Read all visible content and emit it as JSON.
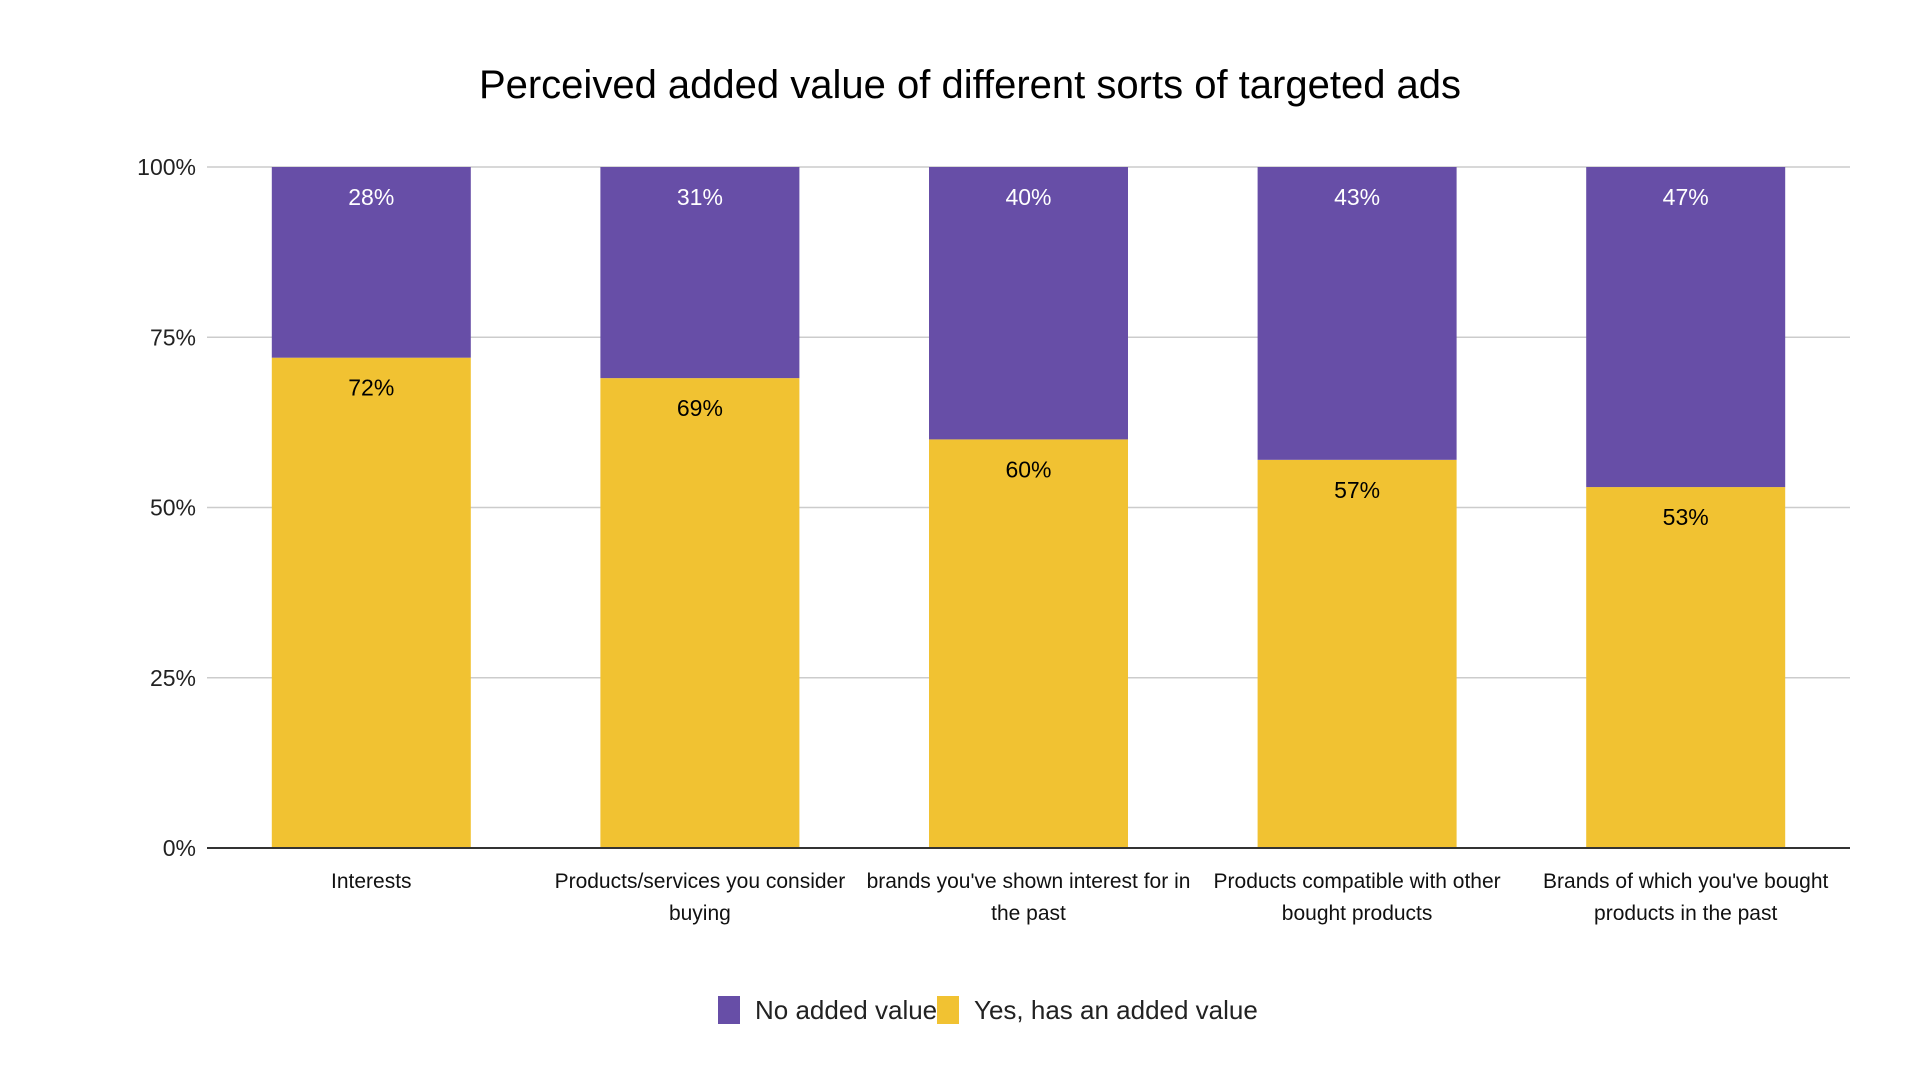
{
  "chart_data": {
    "type": "bar",
    "stacked": true,
    "title": "Perceived added value of different sorts of targeted ads",
    "categories": [
      [
        "Interests"
      ],
      [
        "Products/services you consider",
        "buying"
      ],
      [
        "brands you've shown interest for in",
        "the past"
      ],
      [
        "Products compatible with other",
        "bought products"
      ],
      [
        "Brands of which you've bought",
        "products in the past"
      ]
    ],
    "series": [
      {
        "name": "Yes, has an added value",
        "color": "#F1C232",
        "label_color": "#000000",
        "values": [
          72,
          69,
          60,
          57,
          53
        ]
      },
      {
        "name": "No added value",
        "color": "#674EA7",
        "label_color": "#FFFFFF",
        "values": [
          28,
          31,
          40,
          43,
          47
        ]
      }
    ],
    "legend_order": [
      "No added value",
      "Yes, has an added value"
    ],
    "data_labels": {
      "Yes, has an added value": [
        "72%",
        "69%",
        "60%",
        "57%",
        "53%"
      ],
      "No added value": [
        "28%",
        "31%",
        "40%",
        "43%",
        "47%"
      ]
    },
    "yticks": [
      {
        "value": 0,
        "label": "0%"
      },
      {
        "value": 25,
        "label": "25%"
      },
      {
        "value": 50,
        "label": "50%"
      },
      {
        "value": 75,
        "label": "75%"
      },
      {
        "value": 100,
        "label": "100%"
      }
    ],
    "ylim": [
      0,
      100
    ],
    "grid": true,
    "legend_position": "bottom"
  }
}
